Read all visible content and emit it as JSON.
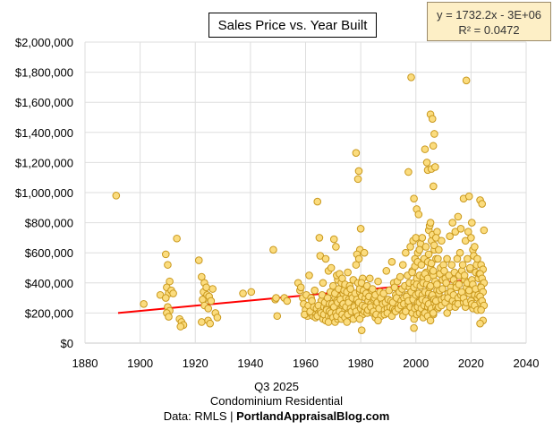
{
  "chart_data": {
    "type": "scatter",
    "title": "Sales Price vs. Year Built",
    "xlabel": "",
    "ylabel": "",
    "xlim": [
      1880,
      2040
    ],
    "ylim": [
      0,
      2000000
    ],
    "x_ticks": [
      "1880",
      "1900",
      "1920",
      "1940",
      "1960",
      "1980",
      "2000",
      "2020",
      "2040"
    ],
    "y_ticks": [
      "$0",
      "$200,000",
      "$400,000",
      "$600,000",
      "$800,000",
      "$1,000,000",
      "$1,200,000",
      "$1,400,000",
      "$1,600,000",
      "$1,800,000",
      "$2,000,000"
    ],
    "grid": true,
    "marker_fill": "#fbdc7e",
    "marker_stroke": "#c9981c",
    "trendline": {
      "type": "linear",
      "color": "#ff0000",
      "equation": "y = 1732.2x - 3E+06",
      "r_squared": "R² = 0.0472",
      "start": [
        1892,
        200000
      ],
      "end": [
        2025,
        430000
      ]
    },
    "points_by_year": [
      [
        1892,
        [
          980000
        ]
      ],
      [
        1902,
        [
          260000
        ]
      ],
      [
        1908,
        [
          320000
        ]
      ],
      [
        1910,
        [
          590000,
          520000,
          410000,
          370000,
          330000,
          300000,
          240000,
          215000,
          200000,
          175000
        ]
      ],
      [
        1912,
        [
          350000,
          330000
        ]
      ],
      [
        1914,
        [
          695000
        ]
      ],
      [
        1915,
        [
          160000,
          140000,
          120000,
          110000
        ]
      ],
      [
        1922,
        [
          550000
        ]
      ],
      [
        1923,
        [
          440000,
          340000,
          300000,
          290000,
          250000,
          140000
        ]
      ],
      [
        1924,
        [
          400000,
          370000,
          230000
        ]
      ],
      [
        1925,
        [
          320000,
          310000,
          280000,
          150000,
          130000
        ]
      ],
      [
        1927,
        [
          360000
        ]
      ],
      [
        1928,
        [
          200000,
          170000
        ]
      ],
      [
        1938,
        [
          330000
        ]
      ],
      [
        1941,
        [
          340000
        ]
      ],
      [
        1949,
        [
          620000,
          290000,
          180000
        ]
      ],
      [
        1950,
        [
          300000
        ]
      ],
      [
        1953,
        [
          300000
        ]
      ],
      [
        1954,
        [
          280000
        ]
      ],
      [
        1958,
        [
          400000,
          350000
        ]
      ],
      [
        1959,
        [
          370000,
          300000,
          190000
        ]
      ],
      [
        1960,
        [
          260000,
          220000,
          180000,
          190000
        ]
      ],
      [
        1961,
        [
          320000,
          250000,
          200000
        ]
      ],
      [
        1962,
        [
          450000,
          300000,
          180000,
          210000
        ]
      ],
      [
        1963,
        [
          280000,
          240000,
          190000
        ]
      ],
      [
        1964,
        [
          350000,
          230000,
          200000,
          170000
        ]
      ],
      [
        1965,
        [
          940000,
          700000,
          280000,
          250000,
          210000,
          180000
        ]
      ],
      [
        1966,
        [
          580000,
          320000,
          240000,
          200000,
          160000
        ]
      ],
      [
        1967,
        [
          400000,
          270000,
          230000,
          190000,
          150000
        ]
      ],
      [
        1968,
        [
          560000,
          300000,
          260000,
          220000,
          180000
        ]
      ],
      [
        1969,
        [
          480000,
          340000,
          250000,
          210000,
          170000,
          140000
        ]
      ],
      [
        1970,
        [
          500000,
          380000,
          300000,
          260000,
          230000,
          200000,
          170000,
          140000
        ]
      ],
      [
        1971,
        [
          690000,
          640000,
          420000,
          330000,
          280000,
          240000,
          200000,
          160000
        ]
      ],
      [
        1972,
        [
          450000,
          360000,
          310000,
          270000,
          220000,
          180000
        ]
      ],
      [
        1973,
        [
          460000,
          400000,
          330000,
          290000,
          250000,
          210000,
          160000
        ]
      ],
      [
        1974,
        [
          430000,
          350000,
          300000,
          260000,
          220000,
          190000
        ]
      ],
      [
        1975,
        [
          390000,
          340000,
          290000,
          240000,
          200000,
          170000,
          140000
        ]
      ],
      [
        1976,
        [
          470000,
          380000,
          320000,
          270000,
          230000,
          190000
        ]
      ],
      [
        1977,
        [
          360000,
          300000,
          250000,
          210000
        ]
      ],
      [
        1978,
        [
          420000,
          330000,
          280000,
          240000,
          200000,
          160000
        ]
      ],
      [
        1979,
        [
          1264000,
          1090000,
          620000,
          590000,
          560000,
          520000,
          400000,
          340000,
          290000,
          250000,
          210000,
          180000
        ]
      ],
      [
        1980,
        [
          1143000,
          760000,
          430000,
          360000,
          310000,
          270000,
          230000,
          190000,
          160000,
          85000
        ]
      ],
      [
        1981,
        [
          400000,
          350000,
          300000,
          250000,
          210000
        ]
      ],
      [
        1982,
        [
          600000,
          330000,
          280000,
          240000,
          200000
        ]
      ],
      [
        1983,
        [
          380000,
          310000,
          260000,
          220000
        ]
      ],
      [
        1984,
        [
          430000,
          350000,
          290000,
          240000,
          200000
        ]
      ],
      [
        1985,
        [
          360000,
          300000,
          250000,
          210000,
          170000
        ]
      ],
      [
        1986,
        [
          320000,
          270000,
          230000,
          190000
        ]
      ],
      [
        1987,
        [
          410000,
          340000,
          280000,
          230000,
          180000,
          150000
        ]
      ],
      [
        1988,
        [
          300000,
          260000,
          220000
        ]
      ],
      [
        1989,
        [
          330000,
          270000,
          230000,
          190000
        ]
      ],
      [
        1990,
        [
          480000,
          290000,
          240000,
          200000
        ]
      ],
      [
        1991,
        [
          350000,
          280000,
          230000
        ]
      ],
      [
        1992,
        [
          540000,
          400000,
          320000,
          270000,
          220000,
          180000
        ]
      ],
      [
        1993,
        [
          370000,
          300000,
          250000,
          210000
        ]
      ],
      [
        1994,
        [
          410000,
          340000,
          280000,
          230000
        ]
      ],
      [
        1995,
        [
          440000,
          360000,
          300000,
          250000,
          200000
        ]
      ],
      [
        1996,
        [
          520000,
          380000,
          320000,
          260000,
          220000,
          180000
        ]
      ],
      [
        1997,
        [
          600000,
          450000,
          370000,
          310000,
          260000,
          210000
        ]
      ],
      [
        1998,
        [
          1137000,
          640000,
          480000,
          400000,
          340000,
          280000,
          240000,
          200000
        ]
      ],
      [
        1999,
        [
          1766000,
          680000,
          560000,
          470000,
          400000,
          340000,
          290000,
          240000,
          200000,
          160000
        ]
      ],
      [
        2000,
        [
          960000,
          700000,
          600000,
          510000,
          430000,
          370000,
          320000,
          270000,
          230000,
          190000,
          100000
        ]
      ],
      [
        2001,
        [
          890000,
          855000,
          660000,
          540000,
          450000,
          390000,
          330000,
          280000,
          240000,
          200000
        ]
      ],
      [
        2002,
        [
          620000,
          520000,
          440000,
          380000,
          320000,
          270000,
          230000,
          190000
        ]
      ],
      [
        2003,
        [
          700000,
          560000,
          470000,
          400000,
          340000,
          290000,
          250000,
          210000,
          170000
        ]
      ],
      [
        2004,
        [
          1288000,
          1200000,
          750000,
          640000,
          540000,
          460000,
          390000,
          330000,
          280000,
          240000,
          200000
        ]
      ],
      [
        2005,
        [
          1150000,
          780000,
          680000,
          590000,
          500000,
          430000,
          370000,
          310000,
          260000,
          220000,
          180000
        ]
      ],
      [
        2006,
        [
          1520000,
          1490000,
          1390000,
          1157000,
          1042000,
          800000,
          720000,
          620000,
          530000,
          450000,
          380000,
          320000,
          270000,
          230000,
          190000,
          150000
        ]
      ],
      [
        2007,
        [
          1311000,
          1170000,
          740000,
          650000,
          560000,
          480000,
          410000,
          350000,
          290000,
          240000,
          200000
        ]
      ],
      [
        2008,
        [
          700000,
          560000,
          460000,
          390000,
          330000,
          280000,
          230000
        ]
      ],
      [
        2009,
        [
          620000,
          500000,
          420000,
          350000,
          290000,
          240000
        ]
      ],
      [
        2010,
        [
          680000,
          520000,
          430000,
          360000,
          300000,
          250000
        ]
      ],
      [
        2011,
        [
          480000,
          400000,
          330000,
          270000,
          200000
        ]
      ],
      [
        2012,
        [
          560000,
          450000,
          370000,
          300000,
          240000
        ]
      ],
      [
        2013,
        [
          710000,
          520000,
          420000,
          340000,
          280000
        ]
      ],
      [
        2014,
        [
          800000,
          470000,
          390000,
          320000,
          260000
        ]
      ],
      [
        2015,
        [
          740000,
          560000,
          450000,
          370000,
          300000,
          240000
        ]
      ],
      [
        2016,
        [
          840000,
          600000,
          480000,
          390000,
          320000,
          260000
        ]
      ],
      [
        2017,
        [
          760000,
          520000,
          420000,
          340000,
          270000
        ]
      ],
      [
        2018,
        [
          960000,
          680000,
          560000,
          450000,
          370000,
          300000,
          240000
        ]
      ],
      [
        2019,
        [
          1745000,
          740000,
          490000,
          400000,
          330000,
          270000
        ]
      ],
      [
        2020,
        [
          975000,
          700000,
          620000,
          500000,
          420000,
          350000,
          280000,
          230000
        ]
      ],
      [
        2021,
        [
          800000,
          580000,
          470000,
          390000,
          320000,
          260000
        ]
      ],
      [
        2022,
        [
          640000,
          520000,
          430000,
          360000,
          300000,
          250000
        ]
      ],
      [
        2023,
        [
          560000,
          460000,
          380000,
          320000,
          270000,
          220000
        ]
      ],
      [
        2024,
        [
          950000,
          925000,
          750000,
          520000,
          490000,
          460000,
          430000,
          400000,
          370000,
          340000,
          310000,
          280000,
          250000,
          220000,
          150000,
          130000
        ]
      ]
    ]
  },
  "footer": {
    "period": "Q3 2025",
    "segment": "Condominium Residential",
    "source_prefix": "Data: RMLS | ",
    "source_site": "PortlandAppraisalBlog.com"
  }
}
